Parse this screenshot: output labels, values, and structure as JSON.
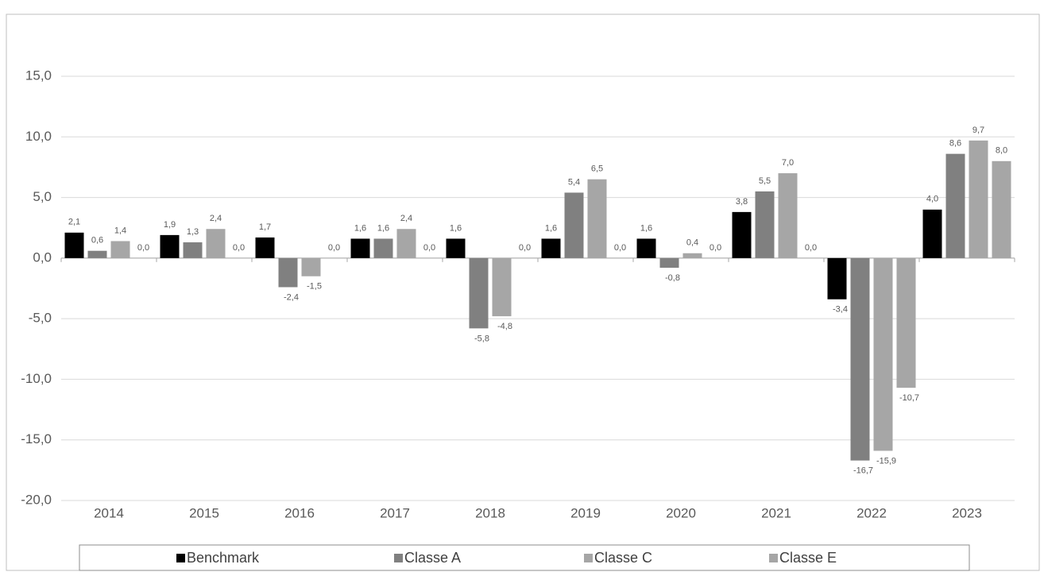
{
  "chart_data": {
    "type": "bar",
    "categories": [
      "2014",
      "2015",
      "2016",
      "2017",
      "2018",
      "2019",
      "2020",
      "2021",
      "2022",
      "2023"
    ],
    "series": [
      {
        "name": "Benchmark",
        "color": "#000000",
        "values": [
          2.1,
          1.9,
          1.7,
          1.6,
          1.6,
          1.6,
          1.6,
          3.8,
          -3.4,
          4.0
        ],
        "value_labels": [
          "2,1",
          "1,9",
          "1,7",
          "1,6",
          "1,6",
          "1,6",
          "1,6",
          "3,8",
          "-3,4",
          "4,0"
        ]
      },
      {
        "name": "Classe A",
        "color": "#808080",
        "values": [
          0.6,
          1.3,
          -2.4,
          1.6,
          -5.8,
          5.4,
          -0.8,
          5.5,
          -16.7,
          8.6
        ],
        "value_labels": [
          "0,6",
          "1,3",
          "-2,4",
          "1,6",
          "-5,8",
          "5,4",
          "-0,8",
          "5,5",
          "-16,7",
          "8,6"
        ]
      },
      {
        "name": "Classe C",
        "color": "#a6a6a6",
        "values": [
          1.4,
          2.4,
          -1.5,
          2.4,
          -4.8,
          6.5,
          0.4,
          7.0,
          -15.9,
          9.7
        ],
        "value_labels": [
          "1,4",
          "2,4",
          "-1,5",
          "2,4",
          "-4,8",
          "6,5",
          "0,4",
          "7,0",
          "-15,9",
          "9,7"
        ]
      },
      {
        "name": "Classe E",
        "color": "#a6a6a6",
        "values": [
          0.0,
          0.0,
          0.0,
          0.0,
          0.0,
          0.0,
          0.0,
          0.0,
          -10.7,
          8.0
        ],
        "value_labels": [
          "0,0",
          "0,0",
          "0,0",
          "0,0",
          "0,0",
          "0,0",
          "0,0",
          "0,0",
          "-10,7",
          "8,0"
        ]
      }
    ],
    "ylim": [
      -20,
      15
    ],
    "yticks": [
      {
        "value": -20,
        "label": "-20,0"
      },
      {
        "value": -15,
        "label": "-15,0"
      },
      {
        "value": -10,
        "label": "-10,0"
      },
      {
        "value": -5,
        "label": "-5,0"
      },
      {
        "value": 0,
        "label": "0,0"
      },
      {
        "value": 5,
        "label": "5,0"
      },
      {
        "value": 10,
        "label": "10,0"
      },
      {
        "value": 15,
        "label": "15,0"
      }
    ],
    "grid": true,
    "legend": "bottom"
  }
}
